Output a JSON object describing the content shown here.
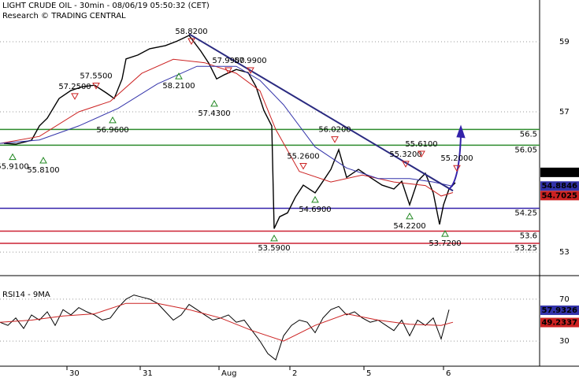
{
  "chart_data": {
    "type": "line",
    "title": "LIGHT CRUDE OIL - 30min - 08/06/19 05:50:32 (CET)",
    "subtitle": "Research © TRADING CENTRAL",
    "xlim": [
      0,
      68.5
    ],
    "xticks": [
      {
        "value": 8.5,
        "label": "30"
      },
      {
        "value": 17.8,
        "label": "31"
      },
      {
        "value": 27.8,
        "label": "Aug"
      },
      {
        "value": 36.8,
        "label": "2"
      },
      {
        "value": 46.2,
        "label": "5"
      },
      {
        "value": 56.3,
        "label": "6"
      }
    ],
    "ylim": [
      52.33,
      60.19
    ],
    "yticks": [
      53,
      57,
      59
    ],
    "grid": true,
    "series": [
      {
        "name": "Price",
        "color": "#000000",
        "x": [
          0.5,
          2,
          4,
          5,
          6,
          7.5,
          9,
          10.5,
          12,
          13.5,
          14.5,
          15.5,
          16,
          17.5,
          19,
          21,
          22.5,
          24,
          25.5,
          26.5,
          27.5,
          28.5,
          30,
          31.5,
          32.5,
          33.5,
          34.5,
          34.8,
          35.5,
          36.5,
          37.5,
          38.5,
          40,
          41,
          42,
          43,
          44,
          45.5,
          47,
          48.5,
          50,
          51,
          52,
          53,
          54,
          55,
          55.8,
          56.3,
          57,
          57.8
        ],
        "values": [
          56.1,
          56.08,
          56.19,
          56.6,
          56.82,
          57.38,
          57.61,
          57.72,
          57.76,
          57.54,
          57.38,
          57.94,
          58.51,
          58.62,
          58.8,
          58.89,
          59.02,
          59.18,
          58.73,
          58.39,
          57.94,
          58.06,
          58.21,
          58.12,
          57.72,
          57.04,
          56.6,
          53.67,
          54.01,
          54.12,
          54.57,
          54.91,
          54.69,
          55.02,
          55.36,
          55.92,
          55.13,
          55.36,
          55.13,
          54.91,
          54.8,
          55.02,
          54.35,
          55.02,
          55.25,
          54.69,
          53.79,
          54.35,
          54.8,
          54.98
        ]
      },
      {
        "name": "MA fast",
        "color": "#cc2222",
        "x": [
          0,
          5,
          10,
          14,
          18,
          22,
          26,
          30,
          33,
          35,
          38,
          42,
          46,
          50,
          54,
          56,
          57.5
        ],
        "values": [
          56.1,
          56.3,
          57.0,
          57.3,
          58.1,
          58.5,
          58.4,
          58.1,
          57.6,
          56.5,
          55.3,
          55.0,
          55.2,
          55.0,
          54.9,
          54.6,
          54.7
        ]
      },
      {
        "name": "MA slow",
        "color": "#3333aa",
        "x": [
          0,
          5,
          10,
          15,
          20,
          25,
          30,
          33,
          36,
          40,
          44,
          48,
          52,
          55,
          57.5
        ],
        "values": [
          56.1,
          56.2,
          56.6,
          57.1,
          57.8,
          58.3,
          58.3,
          57.9,
          57.2,
          56.0,
          55.4,
          55.1,
          55.1,
          55.0,
          54.88
        ]
      }
    ],
    "levels": [
      {
        "value": 56.5,
        "color": "#2e8b2e"
      },
      {
        "value": 56.05,
        "color": "#2e8b2e"
      },
      {
        "value": 54.25,
        "color": "#3322aa"
      },
      {
        "value": 53.6,
        "color": "#cc2233"
      },
      {
        "value": 53.25,
        "color": "#cc2233"
      }
    ],
    "trendline": {
      "x": [
        24,
        57.5
      ],
      "values": [
        59.22,
        54.75
      ],
      "color": "#2a2a80"
    },
    "forecast": {
      "x": [
        57,
        58.5
      ],
      "values": [
        54.8,
        56.6
      ],
      "color": "#3322aa"
    },
    "annotations": [
      {
        "x": 24.3,
        "value": 58.82,
        "label": "58.8200",
        "direction": "high"
      },
      {
        "x": 22.7,
        "value": 58.21,
        "label": "58.2100",
        "direction": "low"
      },
      {
        "x": 12.2,
        "value": 57.55,
        "label": "57.5500",
        "direction": "high"
      },
      {
        "x": 9.5,
        "value": 57.25,
        "label": "57.2500",
        "direction": "high"
      },
      {
        "x": 14.3,
        "value": 56.96,
        "label": "56.9600",
        "direction": "low"
      },
      {
        "x": 1.6,
        "value": 55.91,
        "label": "55.9100",
        "direction": "low"
      },
      {
        "x": 5.5,
        "value": 55.81,
        "label": "55.8100",
        "direction": "low"
      },
      {
        "x": 27.2,
        "value": 57.43,
        "label": "57.4300",
        "direction": "low"
      },
      {
        "x": 29,
        "value": 57.99,
        "label": "57.9900",
        "direction": "high"
      },
      {
        "x": 31.8,
        "value": 57.99,
        "label": "57.9900",
        "direction": "high"
      },
      {
        "x": 34.8,
        "value": 53.59,
        "label": "53.5900",
        "direction": "low"
      },
      {
        "x": 38.5,
        "value": 55.26,
        "label": "55.2600",
        "direction": "high"
      },
      {
        "x": 40,
        "value": 54.69,
        "label": "54.6900",
        "direction": "low"
      },
      {
        "x": 42.5,
        "value": 56.02,
        "label": "56.0200",
        "direction": "high"
      },
      {
        "x": 51.5,
        "value": 55.32,
        "label": "55.3200",
        "direction": "high"
      },
      {
        "x": 53.5,
        "value": 55.61,
        "label": "55.6100",
        "direction": "high"
      },
      {
        "x": 52,
        "value": 54.22,
        "label": "54.2200",
        "direction": "low"
      },
      {
        "x": 56.5,
        "value": 53.72,
        "label": "53.7200",
        "direction": "low"
      },
      {
        "x": 58,
        "value": 55.2,
        "label": "55.2000",
        "direction": "high"
      }
    ],
    "last_values": [
      {
        "value": 55.14,
        "color": "#000000"
      },
      {
        "value": 54.8846,
        "color": "#3333aa"
      },
      {
        "value": 54.7025,
        "color": "#cc2222"
      }
    ],
    "rsi": {
      "label": "RSI14 - 9MA",
      "ylim": [
        6,
        91
      ],
      "yticks": [
        30,
        70
      ],
      "series": [
        {
          "name": "RSI14",
          "color": "#000000",
          "x": [
            0,
            1,
            2,
            3,
            4,
            5,
            6,
            7,
            8,
            9,
            10,
            11,
            12,
            13,
            14,
            15,
            16,
            17,
            18,
            19,
            20,
            21,
            22,
            23,
            24,
            25,
            26,
            27,
            28,
            29,
            30,
            31,
            32,
            33,
            34,
            35,
            36,
            37,
            38,
            39,
            40,
            41,
            42,
            43,
            44,
            45,
            46,
            47,
            48,
            49,
            50,
            51,
            52,
            53,
            54,
            55,
            56,
            57
          ],
          "values": [
            48,
            45,
            52,
            42,
            55,
            50,
            58,
            45,
            60,
            55,
            62,
            58,
            55,
            50,
            52,
            62,
            70,
            74,
            72,
            70,
            66,
            58,
            50,
            55,
            65,
            60,
            55,
            50,
            52,
            55,
            48,
            50,
            40,
            30,
            18,
            12,
            35,
            45,
            50,
            48,
            38,
            52,
            60,
            63,
            55,
            58,
            52,
            48,
            50,
            45,
            40,
            50,
            35,
            50,
            45,
            52,
            32,
            60
          ]
        },
        {
          "name": "9MA",
          "color": "#cc2222",
          "x": [
            0,
            4,
            8,
            12,
            16,
            20,
            24,
            28,
            32,
            36,
            40,
            44,
            48,
            52,
            56,
            57.5
          ],
          "values": [
            48,
            50,
            54,
            56,
            66,
            66,
            60,
            52,
            40,
            30,
            45,
            56,
            50,
            46,
            45,
            48
          ]
        }
      ],
      "last_values": [
        {
          "value": 57.9326,
          "color": "#3333aa"
        },
        {
          "value": 49.2337,
          "color": "#cc2222"
        }
      ]
    }
  }
}
